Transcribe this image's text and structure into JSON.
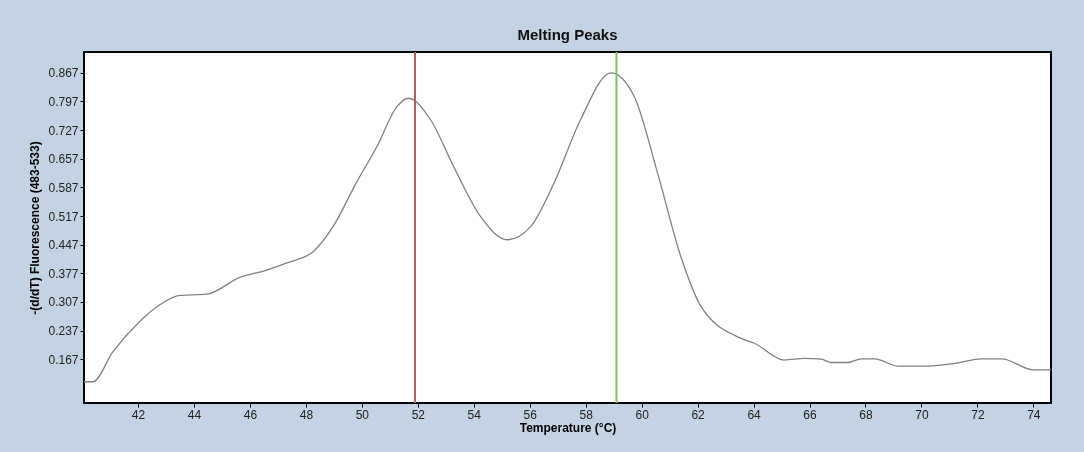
{
  "chart_data": {
    "type": "line",
    "title": "Melting Peaks",
    "xlabel": "Temperature (°C)",
    "ylabel": "-(d/dT) Fluorescence (483-533)",
    "xlim": [
      40.07,
      74.63
    ],
    "ylim": [
      0.06,
      0.918
    ],
    "xticks": [
      42,
      44,
      46,
      48,
      50,
      52,
      54,
      56,
      58,
      60,
      62,
      64,
      66,
      68,
      70,
      72,
      74
    ],
    "yticks": [
      0.167,
      0.237,
      0.307,
      0.377,
      0.447,
      0.517,
      0.587,
      0.657,
      0.727,
      0.797,
      0.867
    ],
    "grid": false,
    "marker": "none",
    "line_style": "solid",
    "series": [
      {
        "color": "#808080",
        "x": [
          40.07,
          40.39,
          41.1,
          42.0,
          42.78,
          43.49,
          44.45,
          45.64,
          46.6,
          47.3,
          48.26,
          48.97,
          49.8,
          50.54,
          51.26,
          51.67,
          52.45,
          53.28,
          54.24,
          55.2,
          56.03,
          56.87,
          57.82,
          58.9,
          59.73,
          60.57,
          61.4,
          62.12,
          63.55,
          64.03,
          65.1,
          65.82,
          66.42,
          66.78,
          67.37,
          67.85,
          68.33,
          69.17,
          70.12,
          71.19,
          72.15,
          72.87,
          74.0,
          74.63
        ],
        "values": [
          0.112,
          0.112,
          0.185,
          0.255,
          0.3,
          0.323,
          0.326,
          0.367,
          0.385,
          0.402,
          0.43,
          0.491,
          0.598,
          0.687,
          0.785,
          0.805,
          0.753,
          0.638,
          0.516,
          0.459,
          0.491,
          0.598,
          0.753,
          0.867,
          0.81,
          0.622,
          0.418,
          0.296,
          0.218,
          0.206,
          0.165,
          0.169,
          0.167,
          0.159,
          0.159,
          0.168,
          0.168,
          0.15,
          0.15,
          0.157,
          0.168,
          0.168,
          0.141,
          0.141
        ]
      }
    ],
    "ref_lines": [
      {
        "axis": "x",
        "value": 51.9,
        "color": "#b06060"
      },
      {
        "axis": "x",
        "value": 59.1,
        "color": "#80c060"
      }
    ]
  }
}
